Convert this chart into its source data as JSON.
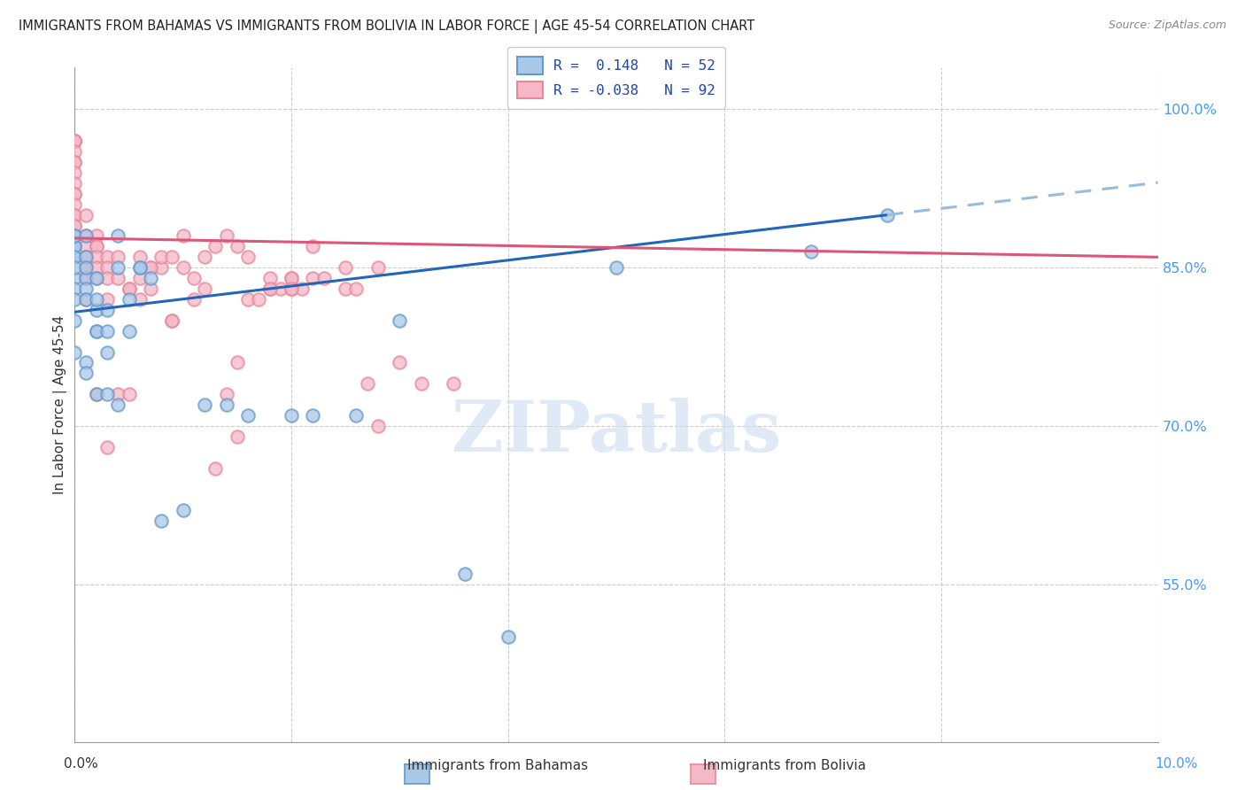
{
  "title": "IMMIGRANTS FROM BAHAMAS VS IMMIGRANTS FROM BOLIVIA IN LABOR FORCE | AGE 45-54 CORRELATION CHART",
  "source": "Source: ZipAtlas.com",
  "ylabel": "In Labor Force | Age 45-54",
  "right_ytick_vals": [
    1.0,
    0.85,
    0.7,
    0.55
  ],
  "right_ytick_labels": [
    "100.0%",
    "85.0%",
    "70.0%",
    "55.0%"
  ],
  "bahamas_r": 0.148,
  "bahamas_n": 52,
  "bolivia_r": -0.038,
  "bolivia_n": 92,
  "blue_fill": "#a8c8e8",
  "blue_edge": "#6699cc",
  "pink_fill": "#f4b8c8",
  "pink_edge": "#e88899",
  "blue_line_color": "#2266bb",
  "pink_line_color": "#dd5577",
  "blue_dash_color": "#99bbdd",
  "xlim": [
    0.0,
    0.1
  ],
  "ylim": [
    0.4,
    1.04
  ],
  "watermark_text": "ZIPatlas",
  "legend_label_blue": "Immigrants from Bahamas",
  "legend_label_pink": "Immigrants from Bolivia",
  "bahamas_x": [
    0.0,
    0.0,
    0.0,
    0.0,
    0.0,
    0.0,
    0.0,
    0.0,
    0.0,
    0.0,
    0.0,
    0.0,
    0.001,
    0.001,
    0.001,
    0.001,
    0.001,
    0.001,
    0.001,
    0.001,
    0.002,
    0.002,
    0.002,
    0.002,
    0.002,
    0.002,
    0.003,
    0.003,
    0.003,
    0.003,
    0.004,
    0.004,
    0.004,
    0.005,
    0.005,
    0.006,
    0.006,
    0.007,
    0.008,
    0.01,
    0.012,
    0.014,
    0.016,
    0.02,
    0.022,
    0.026,
    0.03,
    0.036,
    0.04,
    0.05,
    0.068,
    0.075
  ],
  "bahamas_y": [
    0.87,
    0.86,
    0.87,
    0.88,
    0.84,
    0.88,
    0.83,
    0.86,
    0.85,
    0.8,
    0.77,
    0.82,
    0.88,
    0.84,
    0.86,
    0.83,
    0.82,
    0.85,
    0.76,
    0.75,
    0.84,
    0.79,
    0.81,
    0.73,
    0.82,
    0.79,
    0.79,
    0.73,
    0.77,
    0.81,
    0.88,
    0.85,
    0.72,
    0.82,
    0.79,
    0.85,
    0.85,
    0.84,
    0.61,
    0.62,
    0.72,
    0.72,
    0.71,
    0.71,
    0.71,
    0.71,
    0.8,
    0.56,
    0.5,
    0.85,
    0.865,
    0.9
  ],
  "bolivia_x": [
    0.0,
    0.0,
    0.0,
    0.0,
    0.0,
    0.0,
    0.0,
    0.0,
    0.0,
    0.0,
    0.0,
    0.0,
    0.0,
    0.0,
    0.0,
    0.0,
    0.001,
    0.001,
    0.001,
    0.001,
    0.001,
    0.001,
    0.001,
    0.001,
    0.001,
    0.001,
    0.002,
    0.002,
    0.002,
    0.002,
    0.002,
    0.002,
    0.002,
    0.003,
    0.003,
    0.003,
    0.003,
    0.003,
    0.004,
    0.004,
    0.004,
    0.005,
    0.005,
    0.005,
    0.006,
    0.006,
    0.007,
    0.007,
    0.008,
    0.009,
    0.009,
    0.01,
    0.011,
    0.012,
    0.013,
    0.014,
    0.015,
    0.016,
    0.017,
    0.018,
    0.019,
    0.02,
    0.02,
    0.021,
    0.022,
    0.023,
    0.025,
    0.026,
    0.027,
    0.028,
    0.03,
    0.032,
    0.035,
    0.014,
    0.02,
    0.016,
    0.018,
    0.022,
    0.025,
    0.028,
    0.01,
    0.012,
    0.015,
    0.018,
    0.02,
    0.008,
    0.007,
    0.006,
    0.009,
    0.011,
    0.013,
    0.015
  ],
  "bolivia_y": [
    0.97,
    0.97,
    0.97,
    0.97,
    0.96,
    0.95,
    0.95,
    0.94,
    0.93,
    0.92,
    0.92,
    0.91,
    0.9,
    0.9,
    0.89,
    0.89,
    0.9,
    0.88,
    0.87,
    0.86,
    0.86,
    0.85,
    0.85,
    0.84,
    0.84,
    0.82,
    0.88,
    0.87,
    0.87,
    0.86,
    0.85,
    0.84,
    0.73,
    0.86,
    0.85,
    0.84,
    0.82,
    0.68,
    0.86,
    0.84,
    0.73,
    0.83,
    0.83,
    0.73,
    0.86,
    0.82,
    0.85,
    0.83,
    0.85,
    0.8,
    0.8,
    0.85,
    0.84,
    0.83,
    0.87,
    0.73,
    0.69,
    0.82,
    0.82,
    0.83,
    0.83,
    0.83,
    0.84,
    0.83,
    0.84,
    0.84,
    0.83,
    0.83,
    0.74,
    0.7,
    0.76,
    0.74,
    0.74,
    0.88,
    0.84,
    0.86,
    0.84,
    0.87,
    0.85,
    0.85,
    0.88,
    0.86,
    0.87,
    0.83,
    0.83,
    0.86,
    0.85,
    0.84,
    0.86,
    0.82,
    0.66,
    0.76
  ]
}
